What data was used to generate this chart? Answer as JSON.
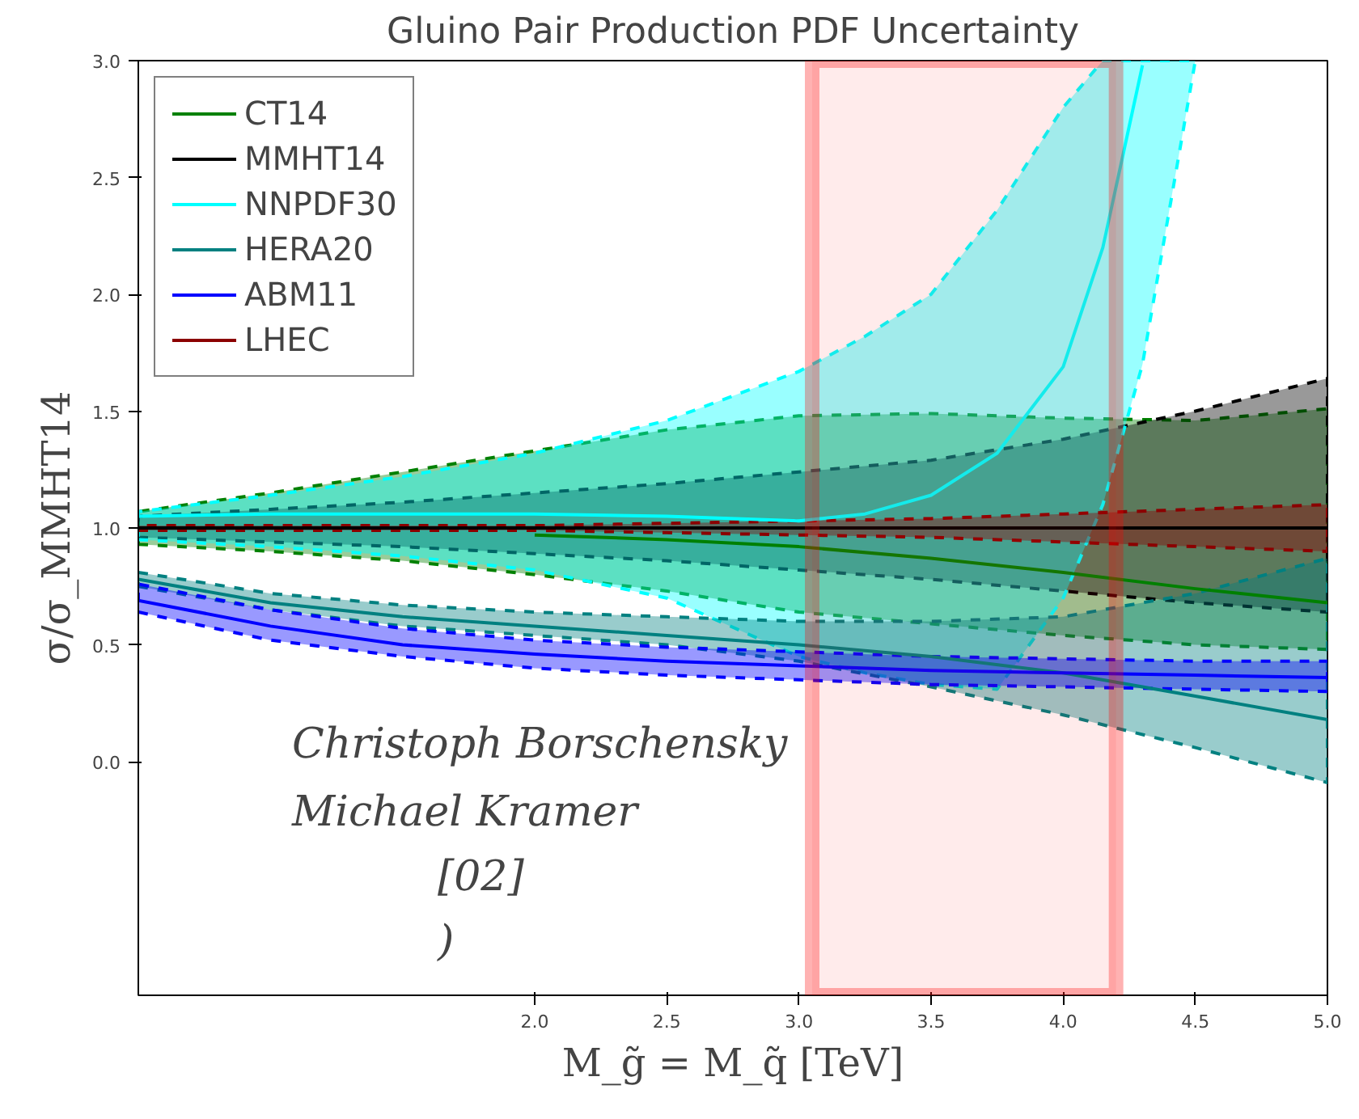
{
  "chart_data": {
    "type": "line",
    "title": "Gluino Pair Production PDF Uncertainty",
    "xlabel": "M_g̃ = M_q̃ [TeV]",
    "ylabel": "σ/σ_MMHT14",
    "x": [
      0.5,
      1.0,
      1.5,
      2.0,
      2.5,
      3.0,
      3.5,
      4.0,
      4.5,
      5.0
    ],
    "series": [
      {
        "name": "CT14",
        "color": "#008000",
        "values": [
          null,
          null,
          null,
          0.97,
          0.95,
          0.92,
          0.87,
          0.81,
          0.74,
          0.68
        ],
        "lower": [
          0.93,
          0.9,
          0.86,
          0.8,
          0.73,
          0.64,
          0.59,
          0.54,
          0.5,
          0.48
        ],
        "upper": [
          1.07,
          1.15,
          1.24,
          1.33,
          1.42,
          1.48,
          1.49,
          1.47,
          1.46,
          1.51
        ]
      },
      {
        "name": "MMHT14",
        "color": "#000000",
        "values": [
          1.0,
          1.0,
          1.0,
          1.0,
          1.0,
          1.0,
          1.0,
          1.0,
          1.0,
          1.0
        ],
        "lower": [
          0.96,
          0.94,
          0.92,
          0.89,
          0.86,
          0.82,
          0.78,
          0.73,
          0.68,
          0.64
        ],
        "upper": [
          1.05,
          1.08,
          1.11,
          1.15,
          1.19,
          1.24,
          1.29,
          1.38,
          1.5,
          1.64
        ]
      },
      {
        "name": "NNPDF30",
        "color": "#00ffff",
        "x": [
          0.5,
          1.0,
          1.5,
          2.0,
          2.5,
          3.0,
          3.25,
          3.5,
          3.75,
          4.0,
          4.15,
          4.3,
          4.5
        ],
        "values": [
          1.05,
          1.06,
          1.06,
          1.06,
          1.05,
          1.03,
          1.06,
          1.14,
          1.32,
          1.69,
          2.2,
          2.98,
          null
        ],
        "lower": [
          0.95,
          0.92,
          0.88,
          0.82,
          0.7,
          0.45,
          0.38,
          0.33,
          0.31,
          0.7,
          1.1,
          1.7,
          3.0
        ],
        "upper": [
          1.07,
          1.14,
          1.22,
          1.32,
          1.46,
          1.67,
          1.82,
          2.0,
          2.36,
          2.8,
          3.0,
          3.0,
          3.0
        ]
      },
      {
        "name": "HERA20",
        "color": "#008080",
        "values": [
          0.78,
          0.68,
          0.62,
          0.58,
          0.54,
          0.5,
          0.45,
          0.38,
          0.28,
          0.18
        ],
        "lower": [
          0.75,
          0.65,
          0.58,
          0.54,
          0.5,
          0.43,
          0.32,
          0.2,
          0.06,
          -0.09
        ],
        "upper": [
          0.81,
          0.72,
          0.67,
          0.64,
          0.62,
          0.6,
          0.6,
          0.62,
          0.72,
          0.87
        ]
      },
      {
        "name": "ABM11",
        "color": "#0000ff",
        "values": [
          0.69,
          0.58,
          0.5,
          0.46,
          0.43,
          0.41,
          0.39,
          0.38,
          0.37,
          0.36
        ],
        "lower": [
          0.64,
          0.52,
          0.45,
          0.4,
          0.37,
          0.35,
          0.33,
          0.32,
          0.31,
          0.3
        ],
        "upper": [
          0.76,
          0.65,
          0.57,
          0.52,
          0.49,
          0.47,
          0.45,
          0.44,
          0.43,
          0.43
        ]
      },
      {
        "name": "LHEC",
        "color": "#8b0000",
        "values": [
          null,
          null,
          null,
          null,
          null,
          null,
          null,
          null,
          null,
          null
        ],
        "lower": [
          0.99,
          0.99,
          0.99,
          0.99,
          0.98,
          0.97,
          0.96,
          0.94,
          0.92,
          0.9
        ],
        "upper": [
          1.01,
          1.01,
          1.01,
          1.01,
          1.02,
          1.03,
          1.04,
          1.06,
          1.08,
          1.1
        ]
      }
    ],
    "xlim": [
      0.5,
      5.0
    ],
    "ylim": [
      -1.0,
      3.0
    ],
    "xticks": [
      {
        "value": 2.0,
        "label": "2.0"
      },
      {
        "value": 2.5,
        "label": "2.5"
      },
      {
        "value": 3.0,
        "label": "3.0"
      },
      {
        "value": 3.5,
        "label": "3.5"
      },
      {
        "value": 4.0,
        "label": "4.0"
      },
      {
        "value": 4.5,
        "label": "4.5"
      },
      {
        "value": 5.0,
        "label": "5.0"
      }
    ],
    "yticks": [
      {
        "value": 0.0,
        "label": "0.0"
      },
      {
        "value": 0.5,
        "label": "0.5"
      },
      {
        "value": 1.0,
        "label": "1.0"
      },
      {
        "value": 1.5,
        "label": "1.5"
      },
      {
        "value": 2.0,
        "label": "2.0"
      },
      {
        "value": 2.5,
        "label": "2.5"
      },
      {
        "value": 3.0,
        "label": "3.0"
      }
    ],
    "bands": [
      {
        "axis": "x",
        "from": 3.05,
        "to": 4.2,
        "label": null,
        "color": "#ff0000"
      }
    ],
    "annotations": [
      "Christoph Borschensky",
      "Michael Kramer",
      "[02]",
      ")"
    ],
    "line_style": "solid",
    "marker": "none",
    "grid": false,
    "legend": "top left"
  }
}
